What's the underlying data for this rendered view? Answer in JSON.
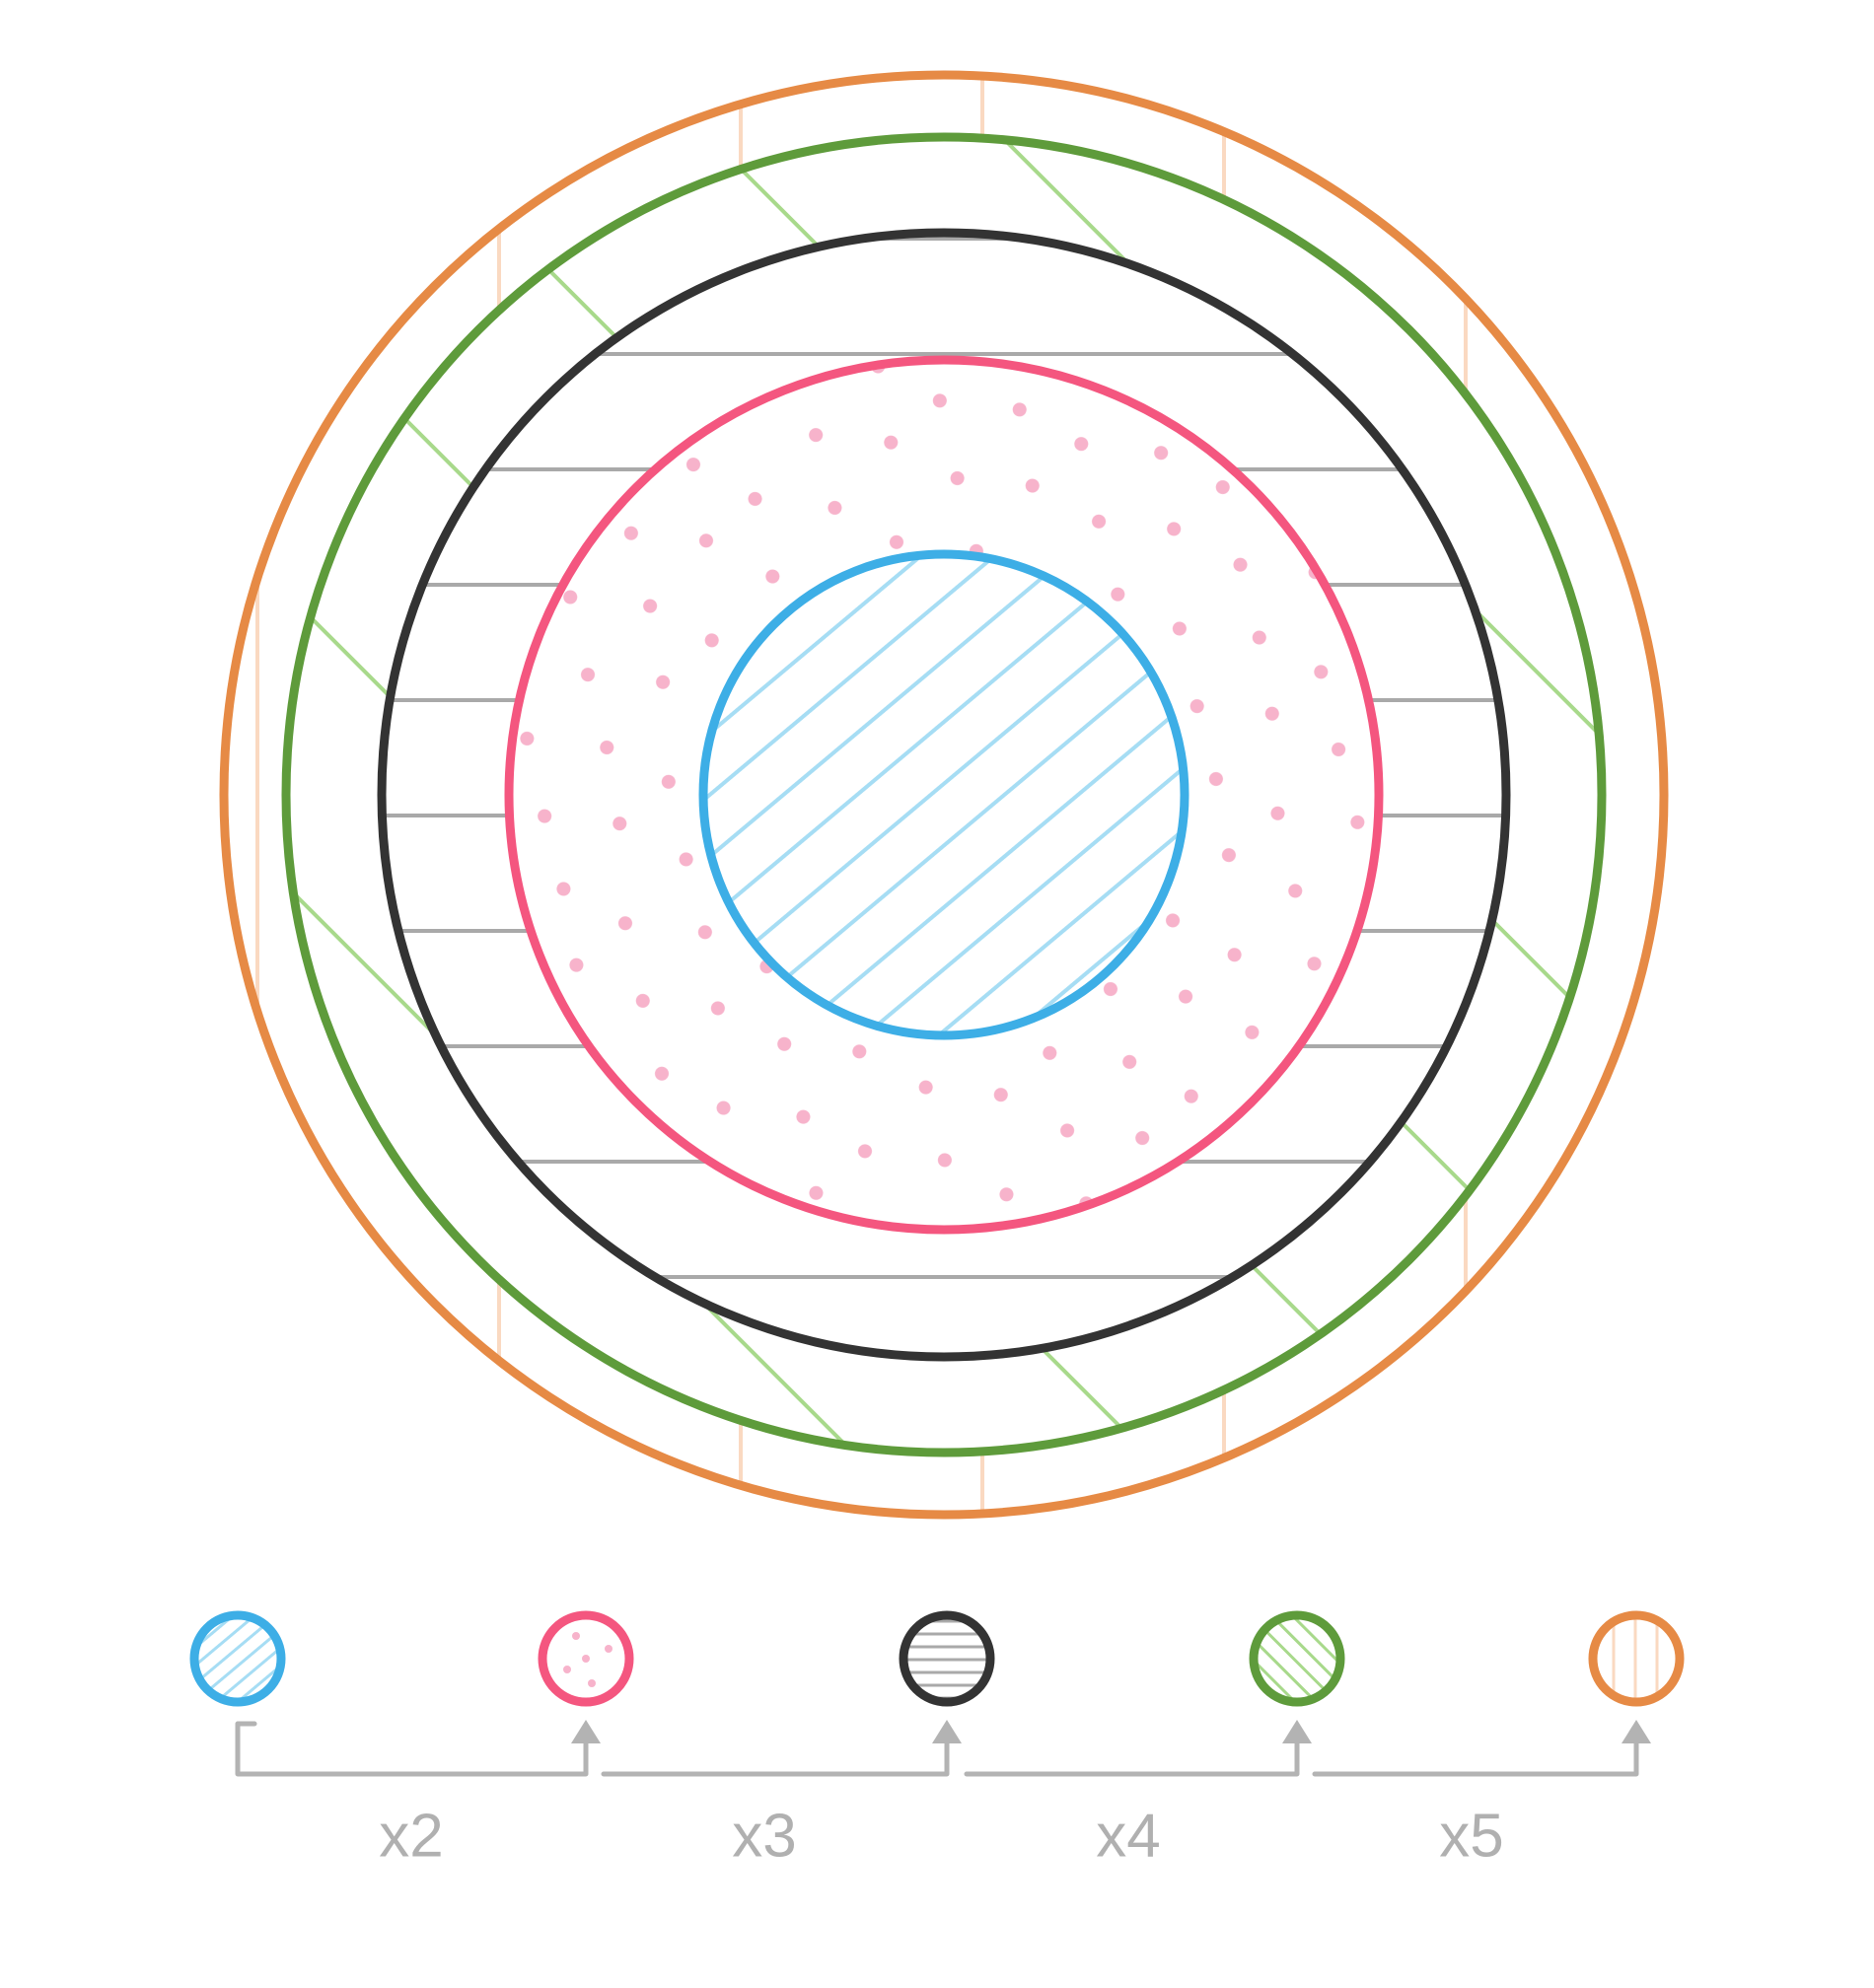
{
  "steps": [
    {
      "label": "x2"
    },
    {
      "label": "x3"
    },
    {
      "label": "x4"
    },
    {
      "label": "x5"
    }
  ]
}
